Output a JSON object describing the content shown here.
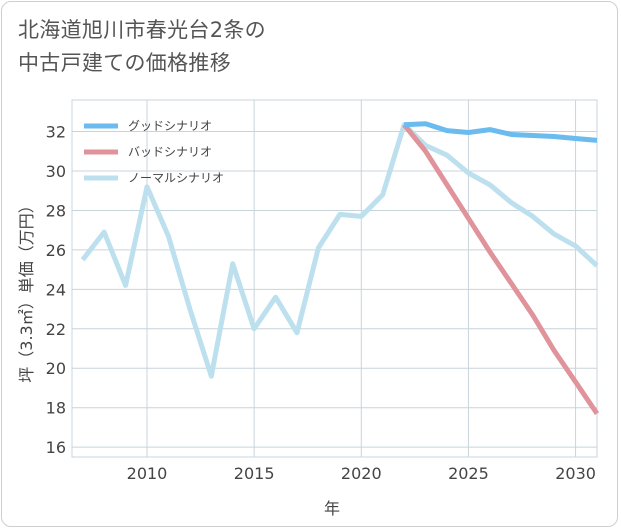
{
  "title": {
    "line1": "北海道旭川市春光台2条の",
    "line2": "中古戸建ての価格推移"
  },
  "chart_data": {
    "type": "line",
    "xlabel": "年",
    "ylabel": "坪（3.3㎡）単価（万円）",
    "xlim": [
      2006.5,
      2031
    ],
    "ylim": [
      15.5,
      33.6
    ],
    "x_ticks": [
      2010,
      2015,
      2020,
      2025,
      2030
    ],
    "y_ticks": [
      16,
      18,
      20,
      22,
      24,
      26,
      28,
      30,
      32
    ],
    "grid": true,
    "legend_position": "top-left",
    "series": [
      {
        "name": "グッドシナリオ",
        "color": "#6bbbef",
        "x": [
          2022,
          2023,
          2024,
          2025,
          2026,
          2027,
          2028,
          2029,
          2030,
          2031
        ],
        "y": [
          32.35,
          32.4,
          32.05,
          31.95,
          32.1,
          31.85,
          31.8,
          31.75,
          31.65,
          31.55
        ]
      },
      {
        "name": "バッドシナリオ",
        "color": "#e0939a",
        "x": [
          2022,
          2023,
          2024,
          2025,
          2026,
          2027,
          2028,
          2029,
          2030,
          2031
        ],
        "y": [
          32.35,
          31.0,
          29.3,
          27.6,
          25.9,
          24.3,
          22.7,
          20.9,
          19.3,
          17.7
        ]
      },
      {
        "name": "ノーマルシナリオ",
        "color": "#bde0ee",
        "x": [
          2007,
          2008,
          2009,
          2010,
          2011,
          2012,
          2013,
          2014,
          2015,
          2016,
          2017,
          2018,
          2019,
          2020,
          2021,
          2022,
          2023,
          2024,
          2025,
          2026,
          2027,
          2028,
          2029,
          2030,
          2031
        ],
        "y": [
          25.5,
          26.9,
          24.2,
          29.2,
          26.7,
          23.0,
          19.6,
          25.3,
          22.0,
          23.6,
          21.8,
          26.1,
          27.8,
          27.7,
          28.8,
          32.35,
          31.3,
          30.8,
          29.9,
          29.3,
          28.4,
          27.7,
          26.8,
          26.2,
          25.2
        ]
      }
    ]
  }
}
